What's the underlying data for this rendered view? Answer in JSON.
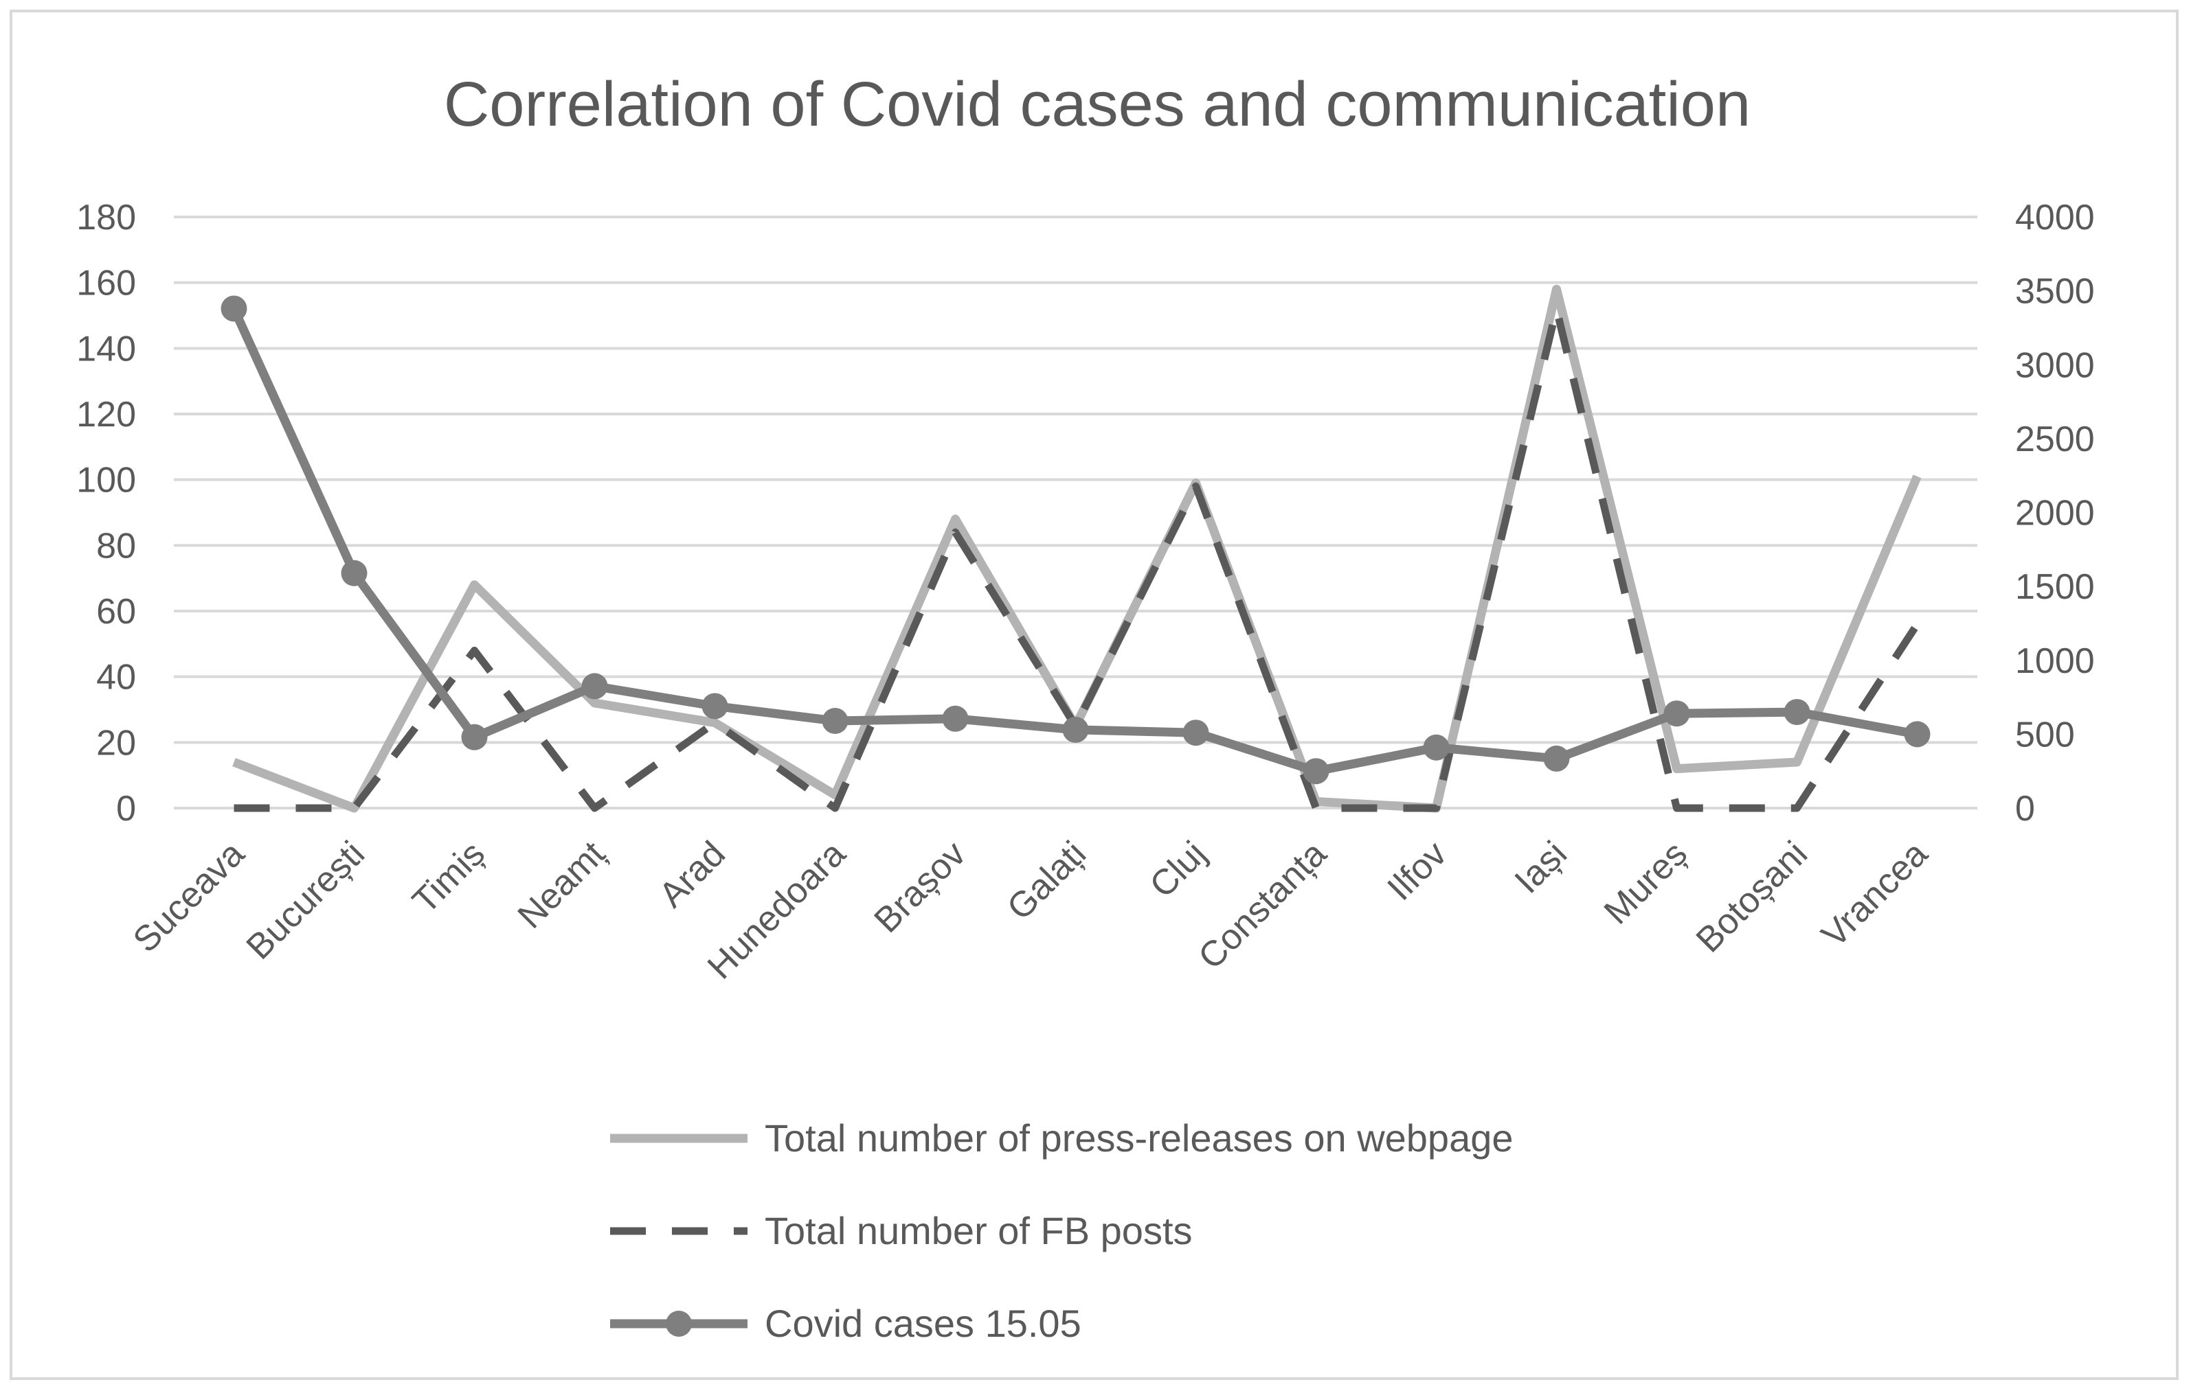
{
  "chart_data": {
    "type": "line",
    "title": "Correlation of Covid cases and communication",
    "xlabel": "",
    "ylabel": "",
    "y2label": "",
    "grid": true,
    "legend_position": "bottom",
    "ylim": [
      0,
      180
    ],
    "y_ticks": [
      "0",
      "20",
      "40",
      "60",
      "80",
      "100",
      "120",
      "140",
      "160",
      "180"
    ],
    "y2lim": [
      0,
      4000
    ],
    "y2_ticks": [
      "0",
      "500",
      "1000",
      "1500",
      "2000",
      "2500",
      "3000",
      "3500",
      "4000"
    ],
    "categories": [
      "Suceava",
      "București",
      "Timiș",
      "Neamț",
      "Arad",
      "Hunedoara",
      "Brașov",
      "Galați",
      "Cluj",
      "Constanța",
      "Ilfov",
      "Iași",
      "Mureș",
      "Botoșani",
      "Vrancea"
    ],
    "series": [
      {
        "name": "Total number of press-releases on webpage",
        "axis": "left",
        "style": "solid",
        "color": "#b3b3b3",
        "values": [
          14,
          0,
          68,
          32,
          26,
          4,
          88,
          25,
          99,
          2,
          0,
          158,
          12,
          14,
          101
        ]
      },
      {
        "name": "Total number of FB posts",
        "axis": "left",
        "style": "dashed",
        "color": "#595959",
        "values": [
          0,
          0,
          48,
          0,
          26,
          0,
          84,
          25,
          98,
          0,
          0,
          152,
          0,
          0,
          56
        ]
      },
      {
        "name": "Covid cases 15.05",
        "axis": "right",
        "style": "solid-markers",
        "color": "#7f7f7f",
        "values": [
          3380,
          1590,
          480,
          825,
          690,
          590,
          605,
          530,
          510,
          250,
          410,
          335,
          640,
          650,
          500
        ]
      }
    ]
  }
}
